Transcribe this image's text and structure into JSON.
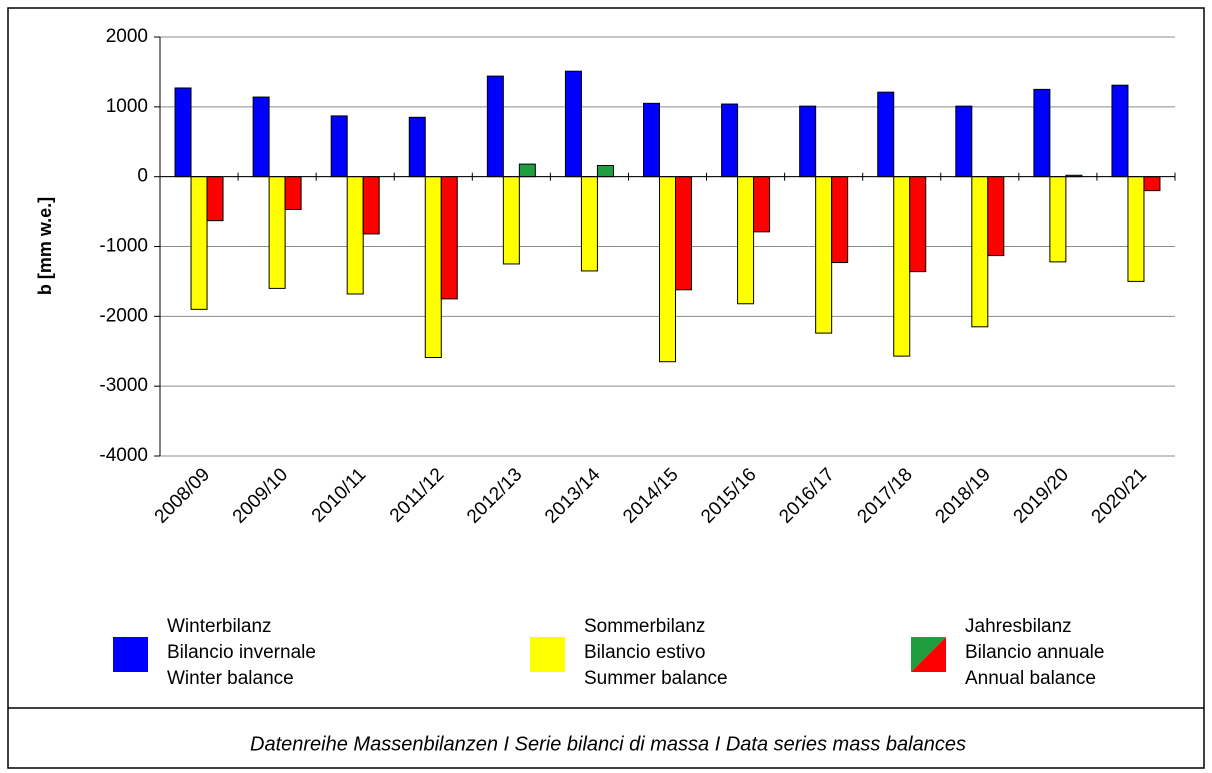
{
  "chart_data": {
    "type": "bar",
    "y_label": "b  [mm w.e.]",
    "caption": "Datenreihe Massenbilanzen I Serie bilanci di massa I Data series mass balances",
    "categories": [
      "2008/09",
      "2009/10",
      "2010/11",
      "2011/12",
      "2012/13",
      "2013/14",
      "2014/15",
      "2015/16",
      "2016/17",
      "2017/18",
      "2018/19",
      "2019/20",
      "2020/21"
    ],
    "series": [
      {
        "name": [
          "Winterbilanz",
          "Bilancio invernale",
          "Winter balance"
        ],
        "color": "#0000ff",
        "values": [
          1270,
          1140,
          870,
          850,
          1440,
          1510,
          1050,
          1040,
          1010,
          1210,
          1010,
          1250,
          1310
        ]
      },
      {
        "name": [
          "Sommerbilanz",
          "Bilancio estivo",
          "Summer balance"
        ],
        "color": "#ffff00",
        "values": [
          -1900,
          -1600,
          -1680,
          -2590,
          -1250,
          -1350,
          -2650,
          -1820,
          -2240,
          -2570,
          -2150,
          -1220,
          -1500
        ]
      },
      {
        "name": [
          "Jahresbilanz",
          "Bilancio annuale",
          "Annual balance"
        ],
        "color": "#ff0000",
        "positive_color": "#1e9e3e",
        "values": [
          -630,
          -470,
          -820,
          -1750,
          180,
          160,
          -1620,
          -790,
          -1230,
          -1360,
          -1130,
          20,
          -200
        ]
      }
    ],
    "ylim": [
      -4000,
      2000
    ],
    "yticks": [
      -4000,
      -3000,
      -2000,
      -1000,
      0,
      1000,
      2000
    ],
    "grid": true
  }
}
